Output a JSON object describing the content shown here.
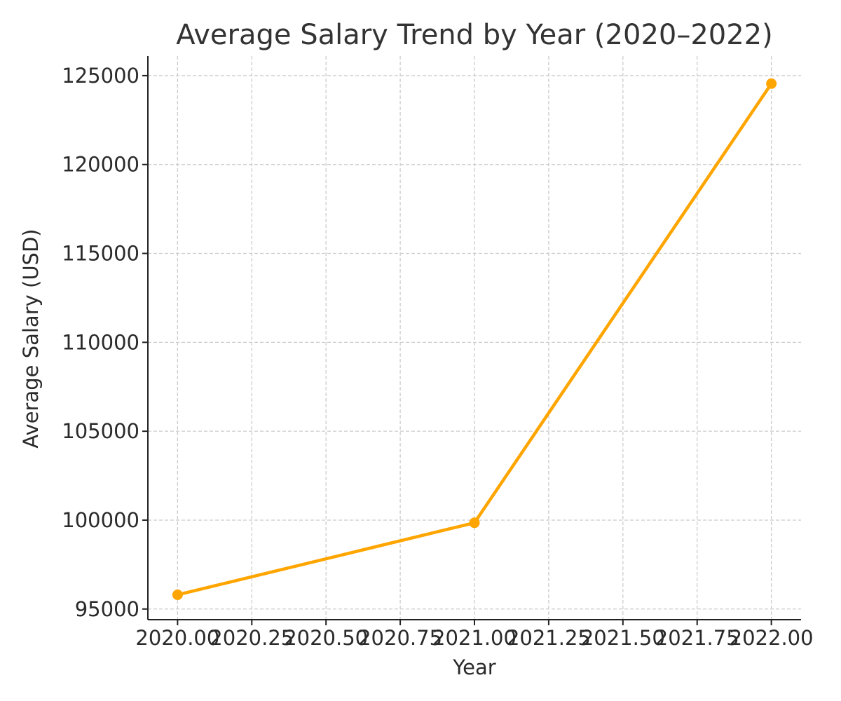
{
  "chart_data": {
    "type": "line",
    "title": "Average Salary Trend by Year (2020–2022)",
    "xlabel": "Year",
    "ylabel": "Average Salary (USD)",
    "xlim": [
      1999.9,
      2022.1
    ],
    "ylim": [
      94400,
      126100
    ],
    "xticks": [
      2020.0,
      2020.25,
      2020.5,
      2020.75,
      2021.0,
      2021.25,
      2021.5,
      2021.75,
      2022.0
    ],
    "xtick_labels": [
      "2020.00",
      "2020.25",
      "2020.50",
      "2020.75",
      "2021.00",
      "2021.25",
      "2021.50",
      "2021.75",
      "2022.00"
    ],
    "yticks": [
      95000,
      100000,
      105000,
      110000,
      115000,
      120000,
      125000
    ],
    "ytick_labels": [
      "95000",
      "100000",
      "105000",
      "110000",
      "115000",
      "120000",
      "125000"
    ],
    "grid": true,
    "series": [
      {
        "color": "#FFA500",
        "marker": "circle",
        "x": [
          2020,
          2021,
          2022
        ],
        "y": [
          95800,
          99850,
          124550
        ]
      }
    ]
  }
}
